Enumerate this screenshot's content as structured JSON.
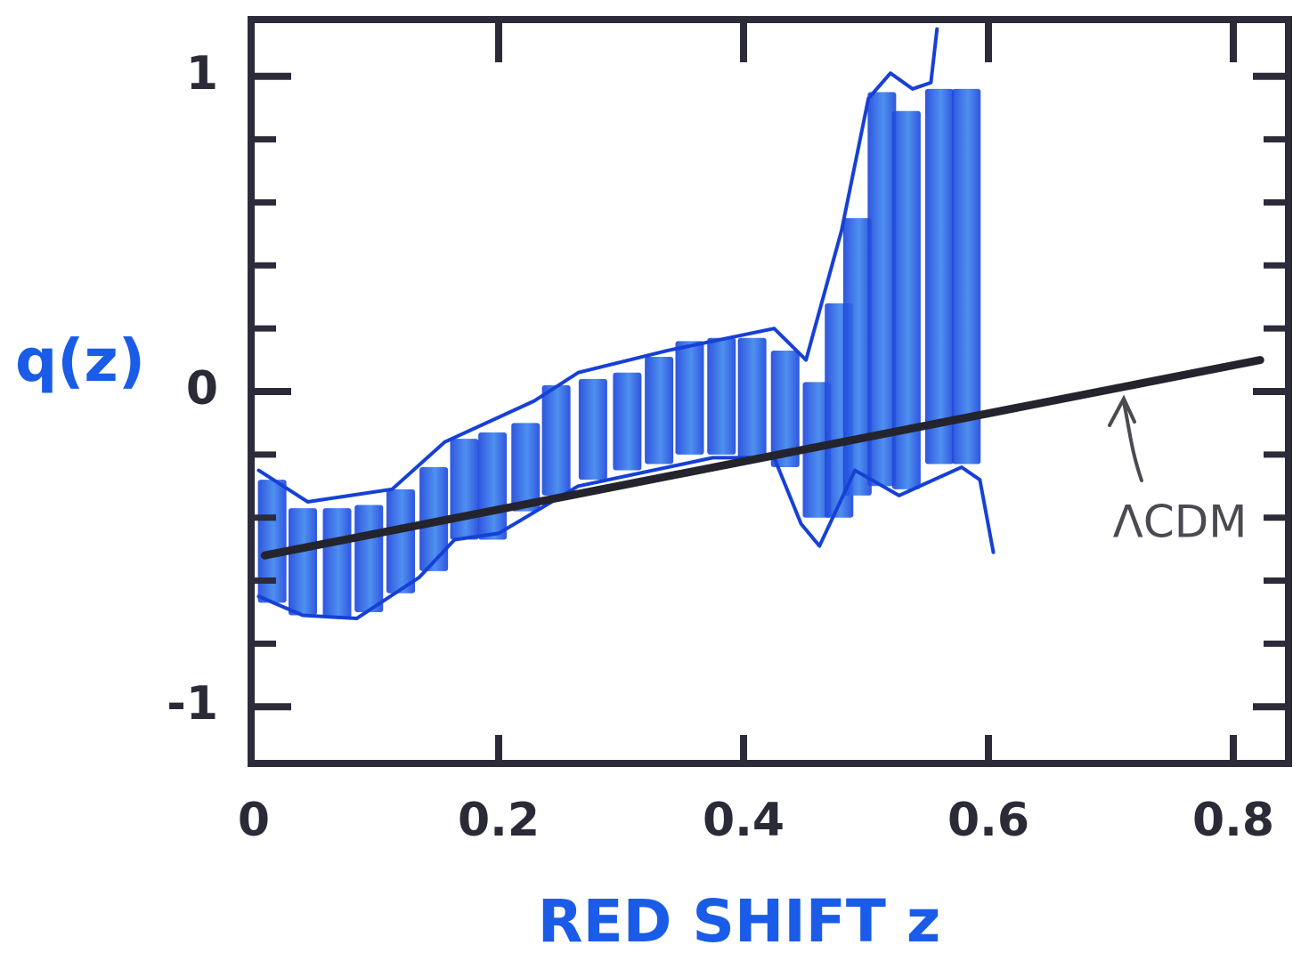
{
  "chart_data": {
    "type": "range_bar",
    "y_label": "q(z)",
    "x_label": "RED SHIFT z",
    "xlim": [
      0,
      0.84
    ],
    "ylim": [
      -1.18,
      1.18
    ],
    "xticks": [
      0,
      0.2,
      0.4,
      0.6,
      0.8
    ],
    "yticks": [
      -1,
      0,
      1
    ],
    "y_minor_ticks": [
      -0.8,
      -0.6,
      -0.4,
      -0.2,
      0.2,
      0.4,
      0.6,
      0.8
    ],
    "axis_color": "#2b2b3a",
    "label_color": "#1a5ce8",
    "bars": {
      "color": "#1d47dc",
      "highlight": "#3f86ee",
      "x": [
        0.015,
        0.04,
        0.068,
        0.094,
        0.12,
        0.147,
        0.172,
        0.195,
        0.222,
        0.247,
        0.277,
        0.305,
        0.331,
        0.356,
        0.382,
        0.407,
        0.434,
        0.46,
        0.478,
        0.493,
        0.513,
        0.533,
        0.56,
        0.582
      ],
      "low": [
        -0.67,
        -0.71,
        -0.72,
        -0.7,
        -0.64,
        -0.57,
        -0.47,
        -0.47,
        -0.38,
        -0.33,
        -0.28,
        -0.25,
        -0.23,
        -0.2,
        -0.2,
        -0.21,
        -0.24,
        -0.4,
        -0.4,
        -0.33,
        -0.3,
        -0.31,
        -0.23,
        -0.23
      ],
      "high": [
        -0.28,
        -0.37,
        -0.37,
        -0.36,
        -0.31,
        -0.24,
        -0.15,
        -0.13,
        -0.1,
        0.02,
        0.04,
        0.06,
        0.11,
        0.16,
        0.17,
        0.17,
        0.13,
        0.03,
        0.28,
        0.55,
        0.95,
        0.89,
        0.96,
        0.96
      ]
    },
    "envelope": {
      "color": "#1640d6",
      "upper": {
        "x": [
          0.004,
          0.044,
          0.113,
          0.156,
          0.229,
          0.265,
          0.338,
          0.425,
          0.451,
          0.48,
          0.502,
          0.52,
          0.538,
          0.553,
          0.558
        ],
        "y": [
          -0.25,
          -0.35,
          -0.31,
          -0.16,
          -0.03,
          0.06,
          0.13,
          0.2,
          0.1,
          0.51,
          0.93,
          1.01,
          0.96,
          0.98,
          1.15
        ]
      },
      "lower": {
        "x": [
          0.004,
          0.04,
          0.084,
          0.135,
          0.164,
          0.2,
          0.265,
          0.375,
          0.425,
          0.447,
          0.462,
          0.491,
          0.527,
          0.578,
          0.593,
          0.604
        ],
        "y": [
          -0.65,
          -0.71,
          -0.72,
          -0.59,
          -0.47,
          -0.45,
          -0.3,
          -0.21,
          -0.21,
          -0.42,
          -0.49,
          -0.25,
          -0.33,
          -0.24,
          -0.28,
          -0.51
        ]
      }
    },
    "lcdm": {
      "label": "ΛCDM",
      "color": "#24242e",
      "x": [
        0.009,
        0.822
      ],
      "y": [
        -0.52,
        0.1
      ]
    }
  }
}
